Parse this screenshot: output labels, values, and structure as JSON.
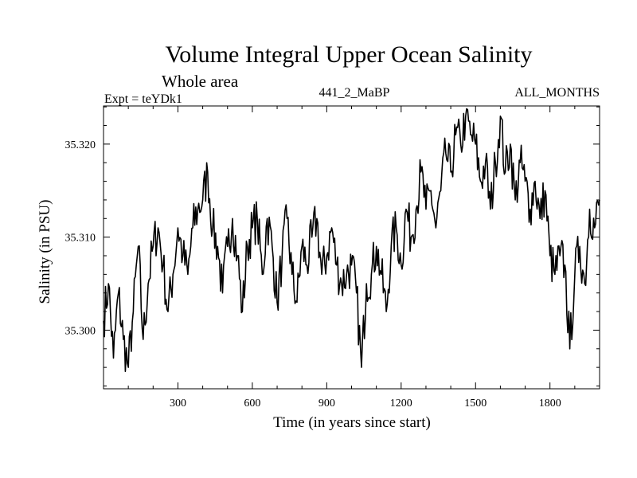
{
  "chart_data": {
    "type": "line",
    "title": "Volume Integral Upper Ocean Salinity",
    "subtitle": "Whole area",
    "experiment_label": "Expt = teYDk1",
    "run_label": "441_2_MaBP",
    "months_label": "ALL_MONTHS",
    "xlabel": "Time (in years since start)",
    "ylabel": "Salinity (in PSU)",
    "xlim": [
      0,
      2000
    ],
    "ylim": [
      35.2937,
      35.3241
    ],
    "xticks": [
      300,
      600,
      900,
      1200,
      1500,
      1800
    ],
    "xtick_labels": [
      "300",
      "600",
      "900",
      "1200",
      "1500",
      "1800"
    ],
    "yticks": [
      35.3,
      35.31,
      35.32
    ],
    "ytick_labels": [
      "35.300",
      "35.310",
      "35.320"
    ],
    "series": [
      {
        "name": "Salinity",
        "x": [
          0,
          20,
          40,
          60,
          80,
          100,
          120,
          140,
          160,
          180,
          200,
          220,
          240,
          260,
          280,
          300,
          320,
          340,
          360,
          380,
          400,
          420,
          440,
          460,
          480,
          500,
          520,
          540,
          560,
          580,
          600,
          620,
          640,
          660,
          680,
          700,
          720,
          740,
          760,
          780,
          800,
          820,
          840,
          860,
          880,
          900,
          920,
          940,
          960,
          980,
          1000,
          1020,
          1040,
          1060,
          1080,
          1100,
          1120,
          1140,
          1160,
          1180,
          1200,
          1220,
          1240,
          1260,
          1280,
          1300,
          1320,
          1340,
          1360,
          1380,
          1400,
          1420,
          1440,
          1460,
          1480,
          1500,
          1520,
          1540,
          1560,
          1580,
          1600,
          1620,
          1640,
          1660,
          1680,
          1700,
          1720,
          1740,
          1760,
          1780,
          1800,
          1820,
          1840,
          1860,
          1880,
          1900,
          1920,
          1940,
          1960,
          1980,
          2000
        ],
        "values": [
          35.301,
          35.305,
          35.297,
          35.304,
          35.299,
          35.296,
          35.302,
          35.309,
          35.299,
          35.305,
          35.309,
          35.311,
          35.307,
          35.302,
          35.306,
          35.311,
          35.308,
          35.306,
          35.311,
          35.313,
          35.314,
          35.317,
          35.311,
          35.309,
          35.304,
          35.309,
          35.312,
          35.308,
          35.302,
          35.309,
          35.311,
          35.312,
          35.306,
          35.312,
          35.309,
          35.303,
          35.308,
          35.312,
          35.306,
          35.303,
          35.309,
          35.307,
          35.31,
          35.312,
          35.306,
          35.308,
          35.311,
          35.307,
          35.305,
          35.306,
          35.307,
          35.304,
          35.296,
          35.305,
          35.306,
          35.309,
          35.306,
          35.302,
          35.309,
          35.311,
          35.307,
          35.313,
          35.31,
          35.313,
          35.317,
          35.313,
          35.315,
          35.311,
          35.315,
          35.319,
          35.317,
          35.321,
          35.32,
          35.323,
          35.321,
          35.32,
          35.316,
          35.318,
          35.313,
          35.318,
          35.323,
          35.317,
          35.32,
          35.314,
          35.318,
          35.316,
          35.313,
          35.316,
          35.312,
          35.315,
          35.308,
          35.306,
          35.308,
          35.307,
          35.298,
          35.306,
          35.309,
          35.305,
          35.313,
          35.311,
          35.314
        ]
      }
    ]
  }
}
